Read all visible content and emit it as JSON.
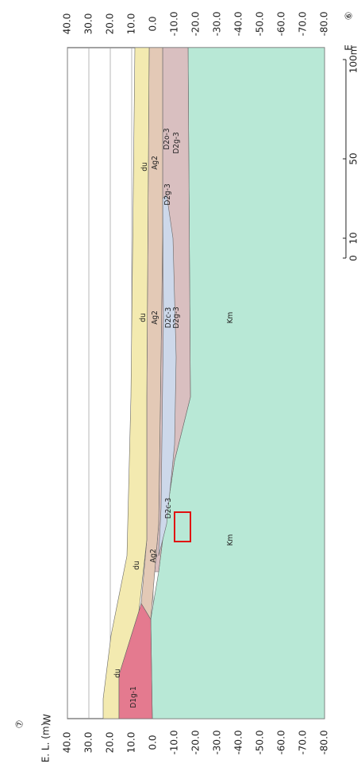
{
  "section": {
    "west_marker": "⑦",
    "west": "W",
    "east_marker": "⑥",
    "east": "E",
    "axis_label": "E. L. (m)",
    "elevations": [
      "40.0",
      "30.0",
      "20.0",
      "10.0",
      "0.0",
      "-10.0",
      "-20.0",
      "-30.0",
      "-40.0",
      "-50.0",
      "-60.0",
      "-70.0",
      "-80.0"
    ],
    "scale": [
      "0",
      "10",
      "50",
      "100m"
    ],
    "layers": [
      "D1g-1",
      "du",
      "du",
      "du",
      "du",
      "Ag2",
      "Ag2",
      "Ag2",
      "D2c-3",
      "D2c-3",
      "D2o-3",
      "D2g-3",
      "D2g-3",
      "D2g-3",
      "Km",
      "Km"
    ]
  }
}
